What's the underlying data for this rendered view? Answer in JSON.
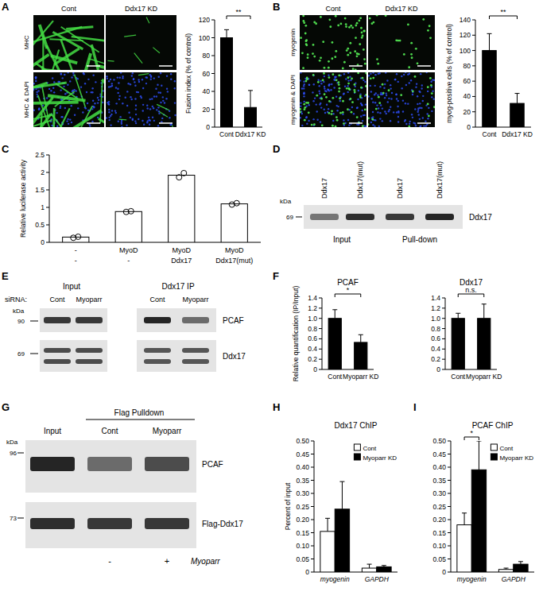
{
  "figure": {
    "panel_labels": [
      "A",
      "B",
      "C",
      "D",
      "E",
      "F",
      "G",
      "H",
      "I"
    ],
    "micrographs": [
      {
        "columns": [
          "Cont",
          "Ddx17 KD"
        ],
        "rows": [
          "MHC",
          "MHC & DAPI"
        ]
      },
      {
        "columns": [
          "Cont",
          "Ddx17 KD"
        ],
        "rows": [
          "myogenin",
          "myogenin & DAPI"
        ]
      }
    ],
    "blots": [
      {
        "lanes": [
          "Ddx17",
          "Ddx17(mut)",
          "Ddx17",
          "Ddx17(mut)"
        ],
        "groups": [
          "Input",
          "Pull-down"
        ],
        "unit": "kDa",
        "markers": [
          69
        ],
        "bands": [
          "Ddx17"
        ]
      },
      {
        "row_label": "siRNA:",
        "lanes": [
          "Cont",
          "Myoparr",
          "Cont",
          "Myoparr"
        ],
        "groups": [
          "Input",
          "Ddx17 IP"
        ],
        "unit": "kDa",
        "markers": [
          90,
          69
        ],
        "bands": [
          "PCAF",
          "Ddx17"
        ]
      },
      {
        "groups": [
          "Flag Pulldown"
        ],
        "lanes": [
          "Input",
          "Cont",
          "Myoparr"
        ],
        "unit": "kDa",
        "markers": [
          96,
          73
        ],
        "bands": [
          "PCAF",
          "Flag-Ddx17"
        ],
        "treatment": [
          "-",
          "+"
        ],
        "treatment_label": "Myoparr"
      }
    ]
  },
  "chart_data": [
    {
      "type": "bar",
      "categories": [
        "Cont",
        "Ddx17 KD"
      ],
      "values": [
        100,
        22
      ],
      "errors": [
        9,
        19
      ],
      "color": "#000000",
      "ylabel": "Fusion index (% of control)",
      "ylim": [
        0,
        120
      ],
      "yticks": [
        0,
        20,
        40,
        60,
        80,
        100,
        120
      ],
      "grid": false,
      "annotations": [
        "**"
      ]
    },
    {
      "type": "bar",
      "categories": [
        "Cont",
        "Ddx17 KD"
      ],
      "values": [
        100,
        31
      ],
      "errors": [
        22,
        13
      ],
      "color": "#000000",
      "ylabel": "myog-positive cells (% of control)",
      "ylim": [
        0,
        140
      ],
      "yticks": [
        0,
        20,
        40,
        60,
        80,
        100,
        120,
        140
      ],
      "grid": false,
      "annotations": [
        "**"
      ]
    },
    {
      "type": "bar",
      "categories": [
        [
          "-",
          "-"
        ],
        [
          "MyoD",
          "-"
        ],
        [
          "MyoD",
          "Ddx17"
        ],
        [
          "MyoD",
          "Ddx17(mut)"
        ]
      ],
      "values": [
        0.15,
        0.88,
        1.92,
        1.1
      ],
      "points": [
        [
          0.13,
          0.16
        ],
        [
          0.87,
          0.89
        ],
        [
          1.86,
          1.98
        ],
        [
          1.08,
          1.12
        ]
      ],
      "color": "#ffffff",
      "ylabel": "Relative luciferase activity",
      "ylim": [
        0,
        2.5
      ],
      "yticks": [
        0,
        0.5,
        1,
        1.5,
        2,
        2.5
      ],
      "grid": false
    },
    {
      "type": "bar",
      "title": "PCAF",
      "categories": [
        "Cont",
        "Myoparr KD"
      ],
      "values": [
        1.0,
        0.53
      ],
      "errors": [
        0.17,
        0.15
      ],
      "color": "#000000",
      "ylabel": "Relative quantification (IP/Input)",
      "ylim": [
        0,
        1.4
      ],
      "yticks": [
        0,
        0.2,
        0.4,
        0.6,
        0.8,
        {
          "value": 1,
          "label": "1.0"
        },
        1.2,
        1.4
      ],
      "grid": false,
      "annotations": [
        "*"
      ]
    },
    {
      "type": "bar",
      "title": "Ddx17",
      "categories": [
        "Cont",
        "Myoparr KD"
      ],
      "values": [
        1.0,
        1.0
      ],
      "errors": [
        0.1,
        0.28
      ],
      "color": "#000000",
      "ylim": [
        0,
        1.4
      ],
      "yticks": [
        0,
        0.2,
        0.4,
        0.6,
        0.8,
        {
          "value": 1,
          "label": "1.0"
        },
        1.2,
        1.4
      ],
      "grid": false,
      "annotations": [
        "n.s."
      ]
    },
    {
      "type": "bar",
      "title": "Ddx17 ChIP",
      "categories": [
        "myogenin",
        "GAPDH"
      ],
      "series": [
        {
          "name": "Cont",
          "color": "#ffffff",
          "values": [
            0.155,
            0.015
          ],
          "errors": [
            0.05,
            0.015
          ]
        },
        {
          "name": "Myoparr KD",
          "color": "#000000",
          "values": [
            0.24,
            0.02
          ],
          "errors": [
            0.105,
            0.005
          ]
        }
      ],
      "ylabel": "Percent of input",
      "ylim": [
        0,
        0.5
      ],
      "yticks": [
        0,
        0.05,
        {
          "value": 0.1,
          "label": "0.10"
        },
        0.15,
        {
          "value": 0.2,
          "label": "0.20"
        },
        0.25,
        {
          "value": 0.3,
          "label": "0.30"
        },
        0.35,
        {
          "value": 0.4,
          "label": "0.40"
        },
        0.45,
        {
          "value": 0.5,
          "label": "0.50"
        }
      ],
      "grid": false,
      "legend": "top"
    },
    {
      "type": "bar",
      "title": "PCAF ChIP",
      "categories": [
        "myogenin",
        "GAPDH"
      ],
      "series": [
        {
          "name": "Cont",
          "color": "#ffffff",
          "values": [
            0.18,
            0.01
          ],
          "errors": [
            0.045,
            0.005
          ]
        },
        {
          "name": "Myoparr KD",
          "color": "#000000",
          "values": [
            0.39,
            0.03
          ],
          "errors": [
            0.11,
            0.01
          ]
        }
      ],
      "ylim": [
        0,
        0.5
      ],
      "yticks": [
        0,
        0.05,
        {
          "value": 0.1,
          "label": "0.10"
        },
        0.15,
        {
          "value": 0.2,
          "label": "0.20"
        },
        0.25,
        {
          "value": 0.3,
          "label": "0.30"
        },
        0.35,
        {
          "value": 0.4,
          "label": "0.40"
        },
        0.45,
        {
          "value": 0.5,
          "label": "0.50"
        }
      ],
      "grid": false,
      "legend": "top",
      "annotations": [
        "*"
      ]
    }
  ]
}
